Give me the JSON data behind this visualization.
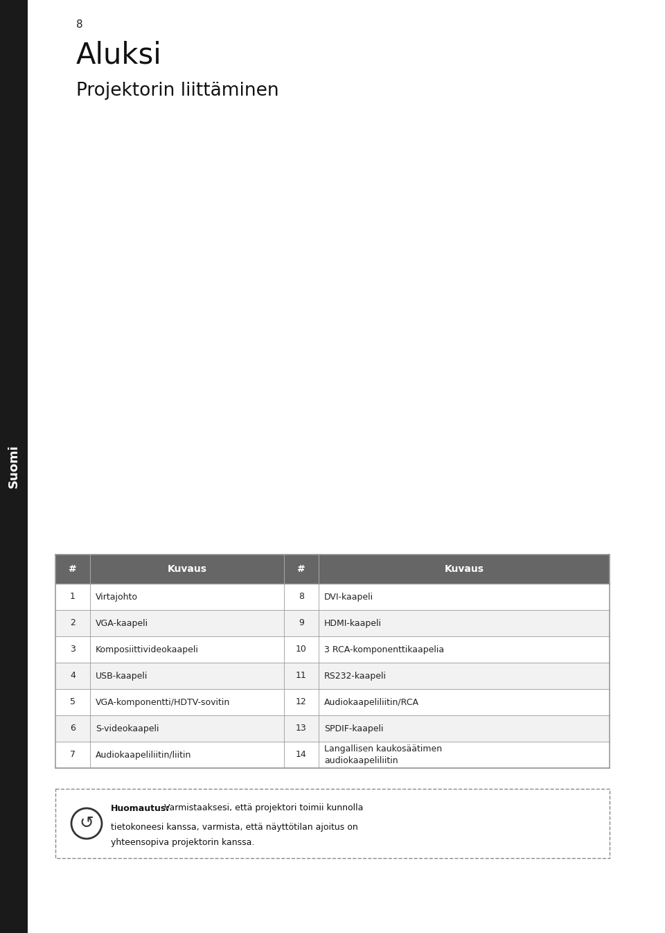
{
  "page_number": "8",
  "sidebar_text": "Suomi",
  "title": "Aluksi",
  "subtitle": "Projektorin liittäminen",
  "bg_color": "#ffffff",
  "sidebar_bg": "#1a1a1a",
  "sidebar_text_color": "#ffffff",
  "table_header_bg": "#666666",
  "table_header_color": "#ffffff",
  "table_border_color": "#999999",
  "table_header": [
    "#",
    "Kuvaus",
    "#",
    "Kuvaus"
  ],
  "table_rows": [
    [
      "1",
      "Virtajohto",
      "8",
      "DVI-kaapeli"
    ],
    [
      "2",
      "VGA-kaapeli",
      "9",
      "HDMI-kaapeli"
    ],
    [
      "3",
      "Komposiittivideokaapeli",
      "10",
      "3 RCA-komponenttikaapelia"
    ],
    [
      "4",
      "USB-kaapeli",
      "11",
      "RS232-kaapeli"
    ],
    [
      "5",
      "VGA-komponentti/HDTV-sovitin",
      "12",
      "Audiokaapeliliitin/RCA"
    ],
    [
      "6",
      "S-videokaapeli",
      "13",
      "SPDIF-kaapeli"
    ],
    [
      "7",
      "Audiokaapeliliitin/liitin",
      "14",
      "Langallisen kaukosäätimen\naudiokaapeliliitin"
    ]
  ],
  "note_bold": "Huomautus:",
  "note_rest": " Varmistaaksesi, että projektori toimii kunnolla",
  "note_line2": "tietokoneesi kanssa, varmista, että näyttötilan ajoitus on",
  "note_line3": "yhteensopiva projektorin kanssa."
}
